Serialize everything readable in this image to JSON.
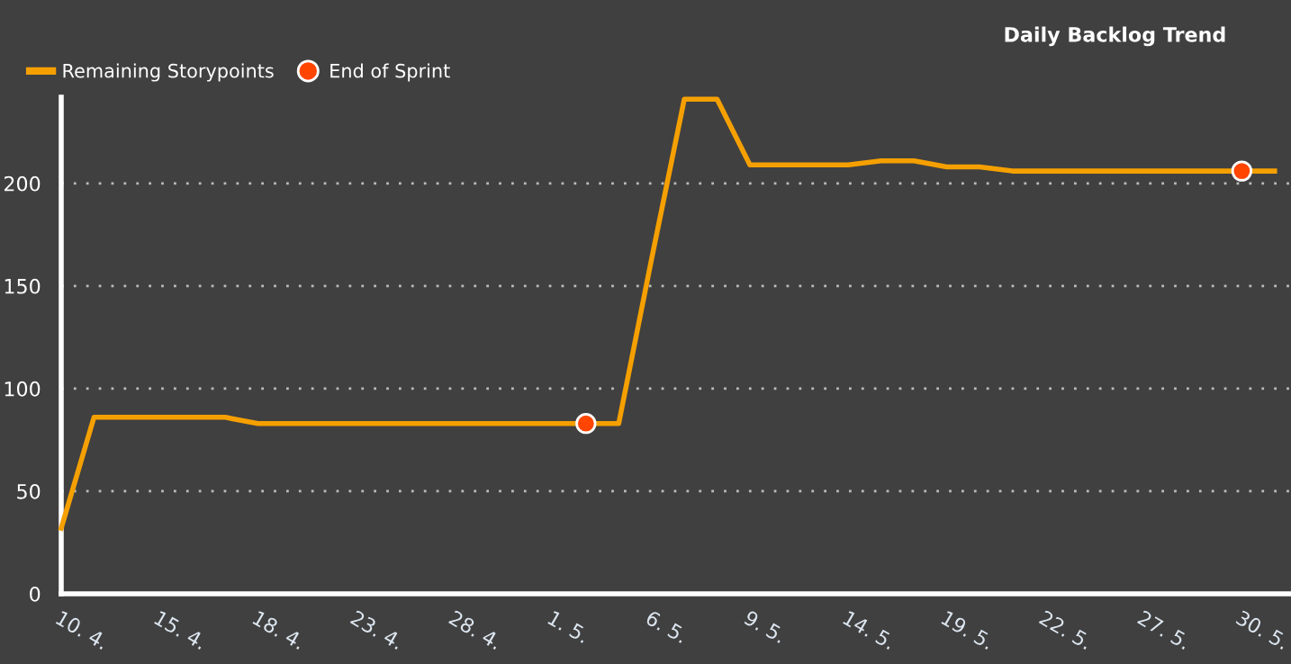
{
  "chart_data": {
    "type": "line",
    "title": "Daily Backlog Trend",
    "categories": [
      "10. 4.",
      null,
      null,
      "15. 4.",
      null,
      null,
      "18. 4.",
      null,
      null,
      "23. 4.",
      null,
      null,
      "28. 4.",
      null,
      null,
      "1. 5.",
      null,
      null,
      "6. 5.",
      null,
      null,
      "9. 5.",
      null,
      null,
      "14. 5.",
      null,
      null,
      "19. 5.",
      null,
      null,
      "22. 5.",
      null,
      null,
      "27. 5.",
      null,
      null,
      "30. 5.",
      null
    ],
    "series": [
      {
        "name": "Remaining Storypoints",
        "color": "#f5a000",
        "values": [
          32,
          86,
          86,
          86,
          86,
          86,
          83,
          83,
          83,
          83,
          83,
          83,
          83,
          83,
          83,
          83,
          83,
          83,
          163,
          241,
          241,
          209,
          209,
          209,
          209,
          211,
          211,
          208,
          208,
          206,
          206,
          206,
          206,
          206,
          206,
          206,
          206,
          206
        ]
      },
      {
        "name": "End of Sprint",
        "type": "scatter",
        "color": "#ff4500",
        "marker": "circle",
        "values": [
          null,
          null,
          null,
          null,
          null,
          null,
          null,
          null,
          null,
          null,
          null,
          null,
          null,
          null,
          null,
          null,
          83,
          null,
          null,
          null,
          null,
          null,
          null,
          null,
          null,
          null,
          null,
          null,
          null,
          null,
          null,
          null,
          null,
          null,
          null,
          null,
          206,
          null
        ]
      }
    ],
    "ylim": [
      0,
      242
    ],
    "yticks": [
      0,
      50,
      100,
      150,
      200
    ],
    "grid": "y",
    "legend": "top left",
    "marker": "none",
    "line_style": "solid"
  }
}
